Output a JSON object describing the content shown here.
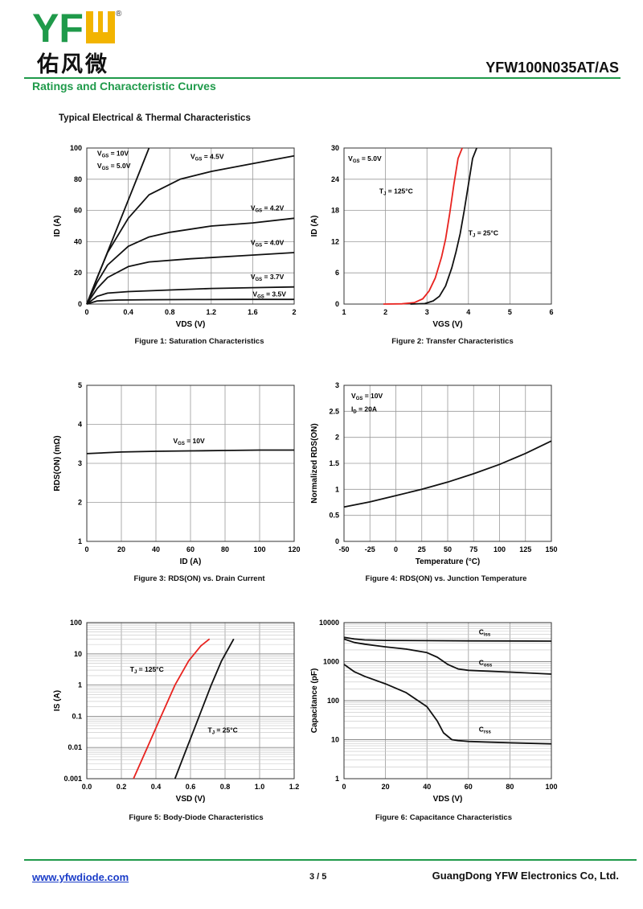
{
  "header": {
    "logo_text": "YFW",
    "logo_cn": "佑风微",
    "registered": "®",
    "part_number": "YFW100N035AT/AS",
    "section_title": "Ratings and Characteristic Curves",
    "sub_title": "Typical Electrical & Thermal Characteristics"
  },
  "footer": {
    "website": "www.yfwdiode.com",
    "page": "3 / 5",
    "company": "GuangDong YFW Electronics Co, Ltd."
  },
  "colors": {
    "brand_green": "#1f9a4a",
    "logo_yellow": "#f2b400",
    "curve_red": "#e8231f",
    "link_blue": "#1a3cc8"
  },
  "captions": {
    "fig1": "Figure 1:  Saturation Characteristics",
    "fig2": "Figure 2:  Transfer Characteristics",
    "fig3": "Figure 3:  RDS(ON) vs. Drain Current",
    "fig4": "Figure 4:  RDS(ON) vs. Junction Temperature",
    "fig5": "Figure 5:  Body-Diode Characteristics",
    "fig6": "Figure 6:  Capacitance Characteristics"
  },
  "chart_data": [
    {
      "id": "fig1",
      "type": "line",
      "xlabel": "VDS (V)",
      "ylabel": "ID (A)",
      "xlim": [
        0,
        2
      ],
      "ylim": [
        0,
        100
      ],
      "xticks": [
        0,
        0.4,
        0.8,
        1.2,
        1.6,
        2
      ],
      "xtick_labels": [
        "0",
        "0.4",
        "0.8",
        "1.2",
        "1.6",
        "2"
      ],
      "yticks": [
        0,
        20,
        40,
        60,
        80,
        100
      ],
      "ytick_labels": [
        "0",
        "20",
        "40",
        "60",
        "80",
        "100"
      ],
      "grid": true,
      "series": [
        {
          "name": "VGS = 10V / VGS = 5.0V",
          "x": [
            0,
            0.15,
            0.3,
            0.45,
            0.6
          ],
          "y": [
            0,
            25,
            50,
            75,
            100
          ]
        },
        {
          "name": "VGS = 4.5V",
          "x": [
            0,
            0.1,
            0.2,
            0.4,
            0.6,
            0.9,
            1.2,
            1.6,
            2.0
          ],
          "y": [
            0,
            17,
            33,
            55,
            70,
            80,
            85,
            90,
            95
          ]
        },
        {
          "name": "VGS = 4.2V",
          "x": [
            0,
            0.1,
            0.2,
            0.4,
            0.6,
            0.8,
            1.2,
            1.6,
            2.0
          ],
          "y": [
            0,
            14,
            25,
            37,
            43,
            46,
            50,
            52,
            55
          ]
        },
        {
          "name": "VGS = 4.0V",
          "x": [
            0,
            0.1,
            0.2,
            0.4,
            0.6,
            1.0,
            1.5,
            2.0
          ],
          "y": [
            0,
            10,
            17,
            24,
            27,
            29,
            31,
            33
          ]
        },
        {
          "name": "VGS = 3.7V",
          "x": [
            0,
            0.1,
            0.2,
            0.4,
            0.8,
            1.2,
            1.6,
            2.0
          ],
          "y": [
            0,
            5,
            7,
            8,
            9,
            10,
            10.5,
            11
          ]
        },
        {
          "name": "VGS = 3.5V",
          "x": [
            0,
            0.1,
            0.3,
            0.6,
            1.0,
            1.5,
            2.0
          ],
          "y": [
            0,
            2,
            2.6,
            2.8,
            2.9,
            3,
            3
          ]
        }
      ],
      "annotations": [
        {
          "sym": "V",
          "sub": "GS",
          "rest": " = 10V",
          "x": 0.1,
          "y": 95
        },
        {
          "sym": "V",
          "sub": "GS",
          "rest": " = 5.0V",
          "x": 0.1,
          "y": 87
        },
        {
          "sym": "V",
          "sub": "GS",
          "rest": " = 4.5V",
          "x": 1.0,
          "y": 93
        },
        {
          "sym": "V",
          "sub": "GS",
          "rest": " = 4.2V",
          "x": 1.58,
          "y": 60
        },
        {
          "sym": "V",
          "sub": "GS",
          "rest": " = 4.0V",
          "x": 1.58,
          "y": 38
        },
        {
          "sym": "V",
          "sub": "GS",
          "rest": " = 3.7V",
          "x": 1.58,
          "y": 16
        },
        {
          "sym": "V",
          "sub": "GS",
          "rest": " = 3.5V",
          "x": 1.6,
          "y": 5
        }
      ]
    },
    {
      "id": "fig2",
      "type": "line",
      "xlabel": "VGS (V)",
      "ylabel": "ID (A)",
      "xlim": [
        1,
        6
      ],
      "ylim": [
        0,
        30
      ],
      "xticks": [
        1,
        2,
        3,
        4,
        5,
        6
      ],
      "xtick_labels": [
        "1",
        "2",
        "3",
        "4",
        "5",
        "6"
      ],
      "yticks": [
        0,
        6,
        12,
        18,
        24,
        30
      ],
      "ytick_labels": [
        "0",
        "6",
        "12",
        "18",
        "24",
        "30"
      ],
      "grid": true,
      "series": [
        {
          "name": "TJ = 125°C",
          "color": "#e8231f",
          "x": [
            1.95,
            2.4,
            2.7,
            2.9,
            3.05,
            3.2,
            3.35,
            3.45,
            3.55,
            3.65,
            3.75,
            3.85
          ],
          "y": [
            0,
            0.05,
            0.3,
            1.0,
            2.5,
            5.0,
            9.0,
            12.5,
            17.5,
            23.0,
            28.0,
            30.0
          ]
        },
        {
          "name": "TJ = 25°C",
          "color": "#111111",
          "x": [
            2.6,
            2.95,
            3.15,
            3.3,
            3.45,
            3.6,
            3.7,
            3.8,
            3.9,
            4.0,
            4.1,
            4.2
          ],
          "y": [
            0,
            0.1,
            0.6,
            1.5,
            3.5,
            7.0,
            10.0,
            13.5,
            18.0,
            23.0,
            28.0,
            30.0
          ]
        }
      ],
      "annotations": [
        {
          "sym": "V",
          "sub": "GS",
          "rest": " = 5.0V",
          "x": 1.1,
          "y": 27.5
        },
        {
          "sym": "T",
          "sub": "J",
          "rest": " = 125°C",
          "x": 1.85,
          "y": 21.3
        },
        {
          "sym": "T",
          "sub": "J",
          "rest": " = 25°C",
          "x": 4.0,
          "y": 13.2
        }
      ]
    },
    {
      "id": "fig3",
      "type": "line",
      "xlabel": "ID (A)",
      "ylabel": "RDS(ON) (mΩ)",
      "xlim": [
        0,
        120
      ],
      "ylim": [
        1,
        5
      ],
      "xticks": [
        0,
        20,
        40,
        60,
        80,
        100,
        120
      ],
      "xtick_labels": [
        "0",
        "20",
        "40",
        "60",
        "80",
        "100",
        "120"
      ],
      "yticks": [
        1,
        2,
        3,
        4,
        5
      ],
      "ytick_labels": [
        "1",
        "2",
        "3",
        "4",
        "5"
      ],
      "grid": true,
      "series": [
        {
          "name": "VGS = 10V",
          "x": [
            0,
            10,
            20,
            40,
            60,
            80,
            100,
            120
          ],
          "y": [
            3.25,
            3.27,
            3.29,
            3.31,
            3.32,
            3.33,
            3.34,
            3.34
          ]
        }
      ],
      "annotations": [
        {
          "sym": "V",
          "sub": "GS",
          "rest": " = 10V",
          "x": 50,
          "y": 3.52
        }
      ]
    },
    {
      "id": "fig4",
      "type": "line",
      "xlabel": "Temperature (°C)",
      "ylabel": "Normalized RDS(ON)",
      "xlim": [
        -50,
        150
      ],
      "ylim": [
        0,
        3
      ],
      "xticks": [
        -50,
        -25,
        0,
        25,
        50,
        75,
        100,
        125,
        150
      ],
      "xtick_labels": [
        "-50",
        "-25",
        "0",
        "25",
        "50",
        "75",
        "100",
        "125",
        "150"
      ],
      "yticks": [
        0,
        0.5,
        1,
        1.5,
        2,
        2.5,
        3
      ],
      "ytick_labels": [
        "0",
        "0.5",
        "1",
        "1.5",
        "2",
        "2.5",
        "3"
      ],
      "grid": true,
      "series": [
        {
          "name": "Normalized RDS(ON)",
          "x": [
            -50,
            -25,
            0,
            25,
            50,
            75,
            100,
            125,
            150
          ],
          "y": [
            0.66,
            0.76,
            0.88,
            1.0,
            1.14,
            1.3,
            1.48,
            1.69,
            1.93
          ]
        }
      ],
      "annotations": [
        {
          "sym": "V",
          "sub": "GS",
          "rest": " = 10V",
          "x": -43,
          "y": 2.75
        },
        {
          "sym": "I",
          "sub": "D",
          "rest": " = 20A",
          "x": -43,
          "y": 2.5
        }
      ]
    },
    {
      "id": "fig5",
      "type": "line",
      "yscale": "log",
      "xlabel": "VSD (V)",
      "ylabel": "IS (A)",
      "xlim": [
        0,
        1.2
      ],
      "ylim": [
        0.001,
        100
      ],
      "xticks": [
        0,
        0.2,
        0.4,
        0.6,
        0.8,
        1.0,
        1.2
      ],
      "xtick_labels": [
        "0.0",
        "0.2",
        "0.4",
        "0.6",
        "0.8",
        "1.0",
        "1.2"
      ],
      "yticks": [
        0.001,
        0.01,
        0.1,
        1,
        10,
        100
      ],
      "ytick_labels": [
        "0.001",
        "0.01",
        "0.1",
        "1",
        "10",
        "100"
      ],
      "grid": true,
      "series": [
        {
          "name": "TJ = 125°C",
          "color": "#e8231f",
          "x": [
            0.27,
            0.35,
            0.43,
            0.51,
            0.59,
            0.66,
            0.71
          ],
          "y": [
            0.001,
            0.01,
            0.1,
            1,
            6,
            18,
            30
          ]
        },
        {
          "name": "TJ = 25°C",
          "color": "#111111",
          "x": [
            0.51,
            0.58,
            0.65,
            0.72,
            0.78,
            0.82,
            0.85
          ],
          "y": [
            0.001,
            0.01,
            0.1,
            1,
            6,
            15,
            30
          ]
        }
      ],
      "annotations": [
        {
          "sym": "T",
          "sub": "J",
          "rest": " = 125°C",
          "x": 0.25,
          "y": 2.7
        },
        {
          "sym": "T",
          "sub": "J",
          "rest": " = 25°C",
          "x": 0.7,
          "y": 0.03
        }
      ]
    },
    {
      "id": "fig6",
      "type": "line",
      "yscale": "log",
      "xlabel": "VDS (V)",
      "ylabel": "Capacitance (pF)",
      "xlim": [
        0,
        100
      ],
      "ylim": [
        1,
        10000
      ],
      "xticks": [
        0,
        20,
        40,
        60,
        80,
        100
      ],
      "xtick_labels": [
        "0",
        "20",
        "40",
        "60",
        "80",
        "100"
      ],
      "yticks": [
        1,
        10,
        100,
        1000,
        10000
      ],
      "ytick_labels": [
        "1",
        "10",
        "100",
        "1000",
        "10000"
      ],
      "grid": true,
      "series": [
        {
          "name": "Ciss",
          "x": [
            0,
            5,
            10,
            20,
            40,
            60,
            80,
            100
          ],
          "y": [
            4200,
            3800,
            3600,
            3500,
            3450,
            3400,
            3380,
            3350
          ]
        },
        {
          "name": "Coss",
          "x": [
            0,
            5,
            10,
            20,
            30,
            40,
            45,
            50,
            55,
            60,
            80,
            100
          ],
          "y": [
            3800,
            3100,
            2800,
            2400,
            2100,
            1700,
            1300,
            850,
            650,
            600,
            540,
            480
          ]
        },
        {
          "name": "Crss",
          "x": [
            0,
            5,
            10,
            20,
            30,
            40,
            45,
            48,
            52,
            55,
            60,
            80,
            100
          ],
          "y": [
            850,
            550,
            420,
            270,
            160,
            70,
            30,
            15,
            10,
            9.5,
            9,
            8.3,
            7.8
          ]
        }
      ],
      "annotations": [
        {
          "sym": "C",
          "sub": "iss",
          "rest": "",
          "x": 65,
          "y": 5000
        },
        {
          "sym": "C",
          "sub": "oss",
          "rest": "",
          "x": 65,
          "y": 830
        },
        {
          "sym": "C",
          "sub": "rss",
          "rest": "",
          "x": 65,
          "y": 16
        }
      ]
    }
  ]
}
